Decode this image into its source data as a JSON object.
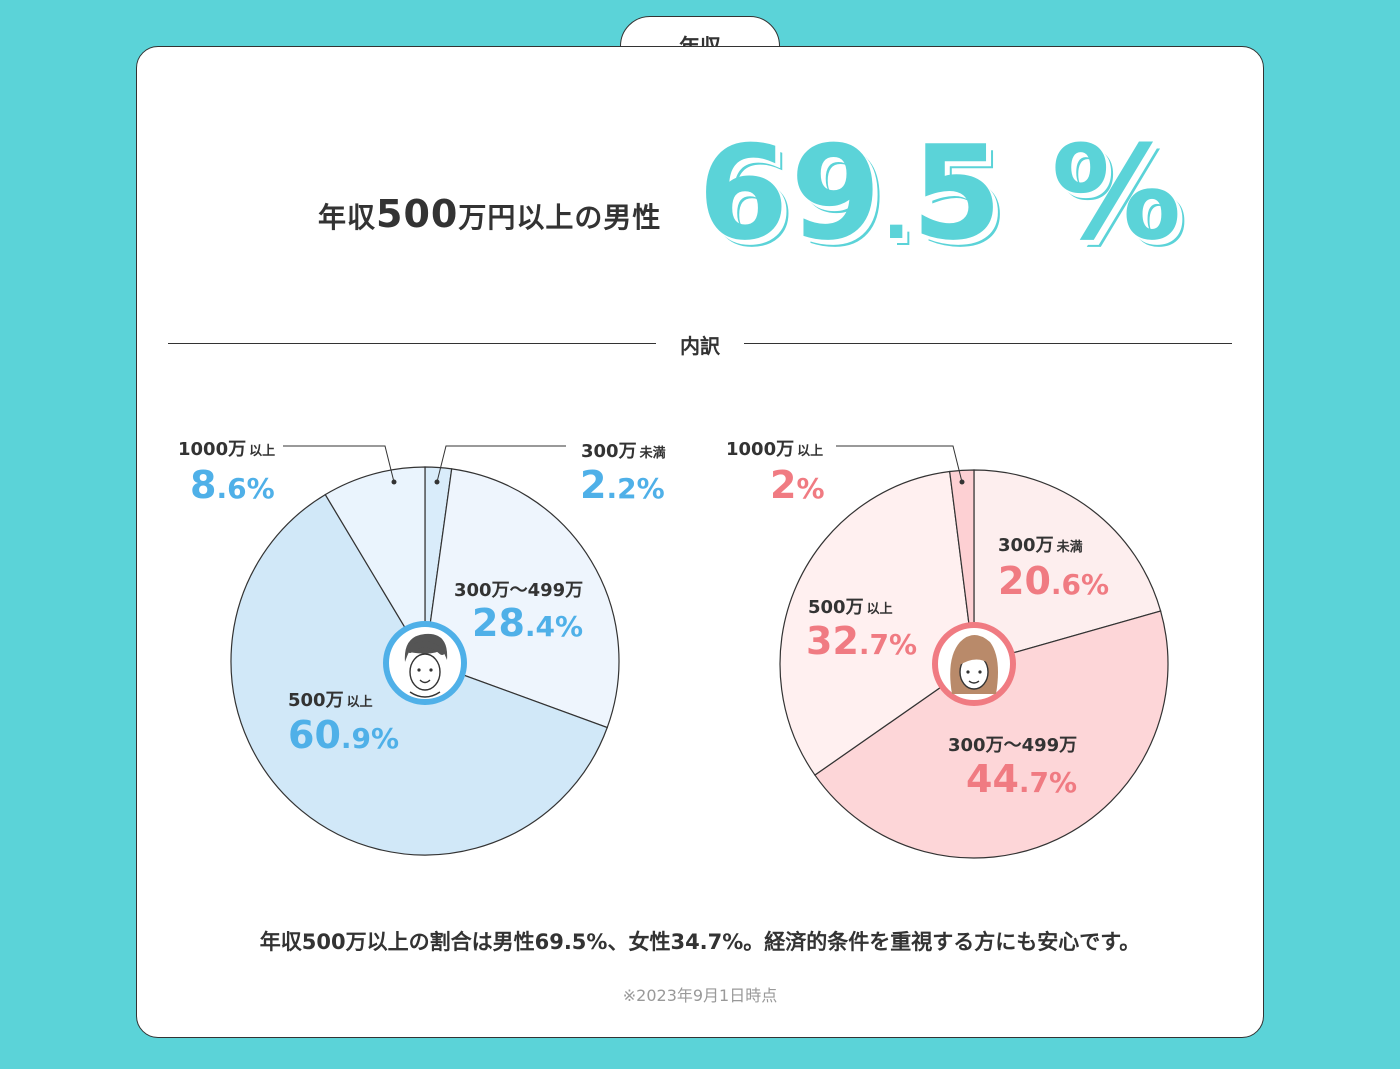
{
  "tab": {
    "label": "年収"
  },
  "headline": {
    "prefix": "年収",
    "number": "500",
    "suffix": "万円以上の男性"
  },
  "big_value": {
    "int": "69",
    "dot": ".",
    "dec": "5",
    "unit": " %"
  },
  "divider": {
    "label": "内訳"
  },
  "colors": {
    "background": "#5bd3d8",
    "male_text": "#4fb0e8",
    "female_text": "#f07b82",
    "male_slices": [
      "#d9ecfa",
      "#eef5fd",
      "#d1e8f8",
      "#eaf4fd"
    ],
    "female_slices": [
      "#fdeeee",
      "#fdd6d8",
      "#fff0f0",
      "#fdd0d3"
    ]
  },
  "chart_data": [
    {
      "type": "pie",
      "name": "男性",
      "categories": [
        "300万未満",
        "300万～499万",
        "500万以上",
        "1000万以上"
      ],
      "values": [
        2.2,
        28.4,
        60.9,
        8.6
      ],
      "icon": "man-avatar-icon",
      "labels": [
        {
          "main": "300万",
          "small": "未満",
          "int": "2",
          "dec": ".2%"
        },
        {
          "main": "300万～499万",
          "small": "",
          "int": "28",
          "dec": ".4%"
        },
        {
          "main": "500万",
          "small": "以上",
          "int": "60",
          "dec": ".9%"
        },
        {
          "main": "1000万",
          "small": "以上",
          "int": "8",
          "dec": ".6%"
        }
      ]
    },
    {
      "type": "pie",
      "name": "女性",
      "categories": [
        "300万未満",
        "300万～499万",
        "500万以上",
        "1000万以上"
      ],
      "values": [
        20.6,
        44.7,
        32.7,
        2
      ],
      "icon": "woman-avatar-icon",
      "labels": [
        {
          "main": "300万",
          "small": "未満",
          "int": "20",
          "dec": ".6%"
        },
        {
          "main": "300万～499万",
          "small": "",
          "int": "44",
          "dec": ".7%"
        },
        {
          "main": "500万",
          "small": "以上",
          "int": "32",
          "dec": ".7%"
        },
        {
          "main": "1000万",
          "small": "以上",
          "int": "2",
          "dec": "%"
        }
      ]
    }
  ],
  "summary": "年収500万以上の割合は男性69.5%、女性34.7%。経済的条件を重視する方にも安心です。",
  "note": "※2023年9月1日時点"
}
